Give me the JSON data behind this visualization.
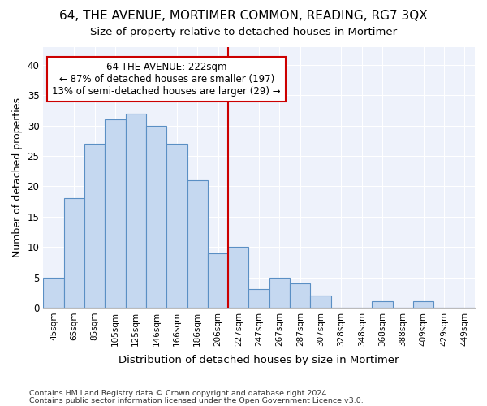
{
  "title": "64, THE AVENUE, MORTIMER COMMON, READING, RG7 3QX",
  "subtitle": "Size of property relative to detached houses in Mortimer",
  "xlabel": "Distribution of detached houses by size in Mortimer",
  "ylabel": "Number of detached properties",
  "categories": [
    "45sqm",
    "65sqm",
    "85sqm",
    "105sqm",
    "125sqm",
    "146sqm",
    "166sqm",
    "186sqm",
    "206sqm",
    "227sqm",
    "247sqm",
    "267sqm",
    "287sqm",
    "307sqm",
    "328sqm",
    "348sqm",
    "368sqm",
    "388sqm",
    "409sqm",
    "429sqm",
    "449sqm"
  ],
  "values": [
    5,
    18,
    27,
    31,
    32,
    30,
    27,
    21,
    9,
    10,
    3,
    5,
    4,
    2,
    0,
    0,
    1,
    0,
    1,
    0,
    0
  ],
  "bar_color": "#c5d8f0",
  "bar_edge_color": "#5a8fc4",
  "vline_x": 9,
  "vline_color": "#cc0000",
  "annotation_text": "64 THE AVENUE: 222sqm\n← 87% of detached houses are smaller (197)\n13% of semi-detached houses are larger (29) →",
  "annotation_box_color": "#ffffff",
  "annotation_box_edge": "#cc0000",
  "ylim": [
    0,
    43
  ],
  "yticks": [
    0,
    5,
    10,
    15,
    20,
    25,
    30,
    35,
    40
  ],
  "bg_color": "#eef2fb",
  "grid_color": "#ffffff",
  "fig_bg_color": "#ffffff",
  "footer1": "Contains HM Land Registry data © Crown copyright and database right 2024.",
  "footer2": "Contains public sector information licensed under the Open Government Licence v3.0."
}
